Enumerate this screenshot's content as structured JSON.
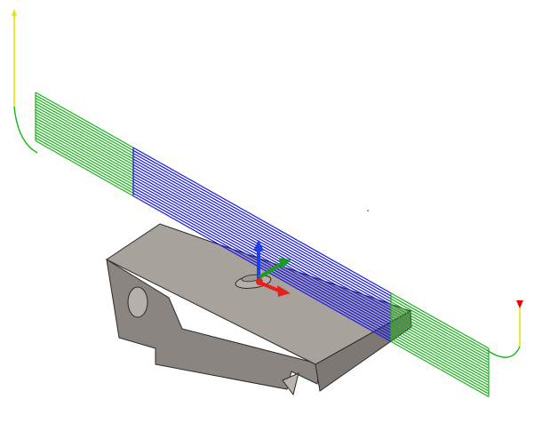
{
  "viewport": {
    "background": "#ffffff"
  },
  "colors": {
    "part_top": "#a8a29d",
    "part_left": "#8a8581",
    "part_front": "#7d7874",
    "part_edge": "#2a2a2a",
    "toolpath_outside": "#19b219",
    "toolpath_cutting": "#1616e6",
    "rapid_plunge": "#e6e600",
    "retract_arrow": "#e60000",
    "axis_x": "#e62020",
    "axis_y": "#1e9a1e",
    "axis_z": "#1e40e6",
    "hole_fill": "#b6b0ab"
  },
  "icons": {
    "coordinate_triad": "xyz-axes-icon",
    "entry_marker": "entry-arrow-icon",
    "exit_marker": "exit-arrow-icon"
  }
}
